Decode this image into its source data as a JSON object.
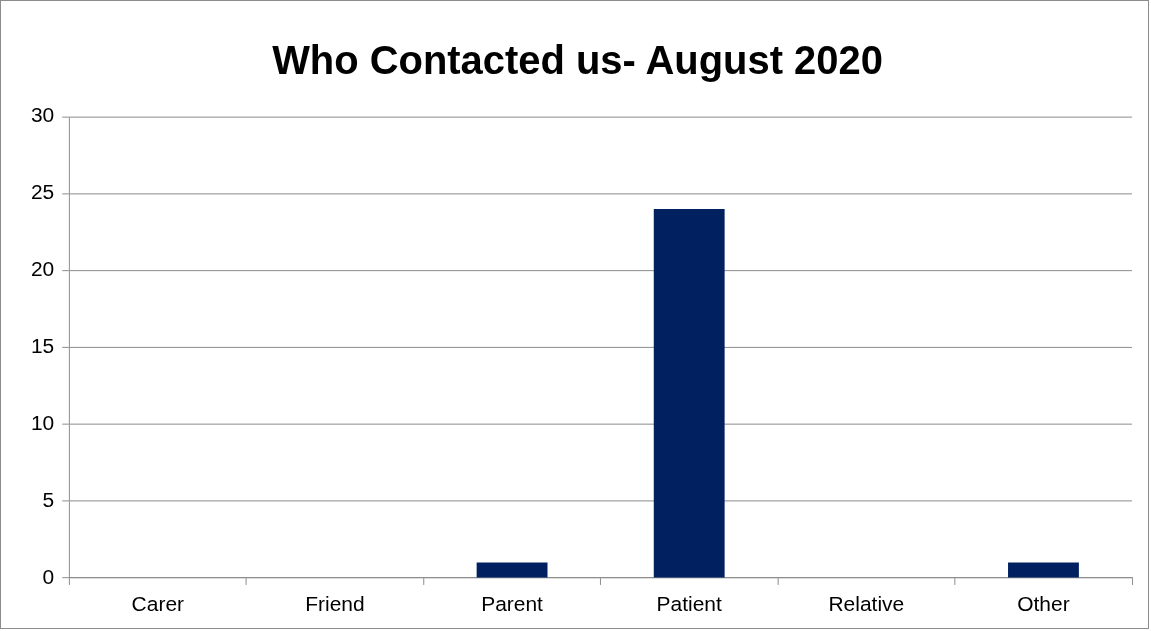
{
  "chart_data": {
    "type": "bar",
    "title": "Who Contacted us- August 2020",
    "categories": [
      "Carer",
      "Friend",
      "Parent",
      "Patient",
      "Relative",
      "Other"
    ],
    "values": [
      0,
      0,
      1,
      24,
      0,
      1
    ],
    "color": "#002060",
    "ylim": [
      0,
      30
    ],
    "yticks": [
      0,
      5,
      10,
      15,
      20,
      25,
      30
    ],
    "grid": "y",
    "legend": false
  }
}
